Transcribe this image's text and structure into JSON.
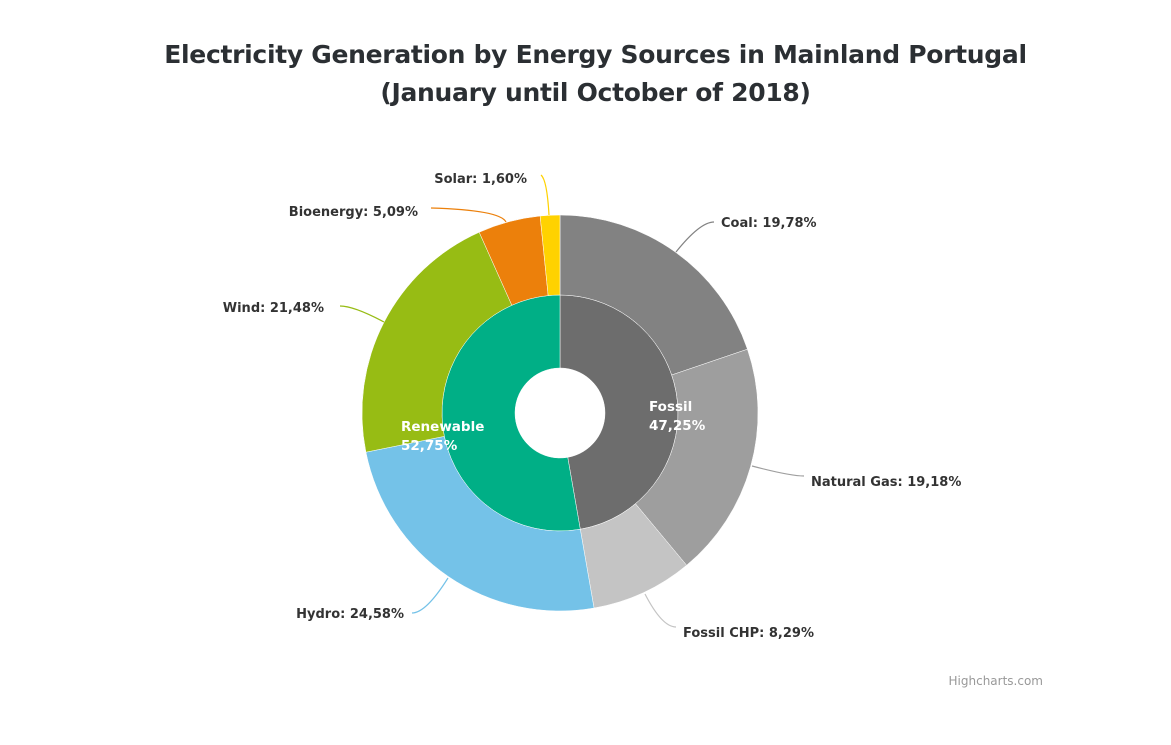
{
  "chart_data": {
    "type": "pie",
    "subtype": "donut-two-level",
    "title": "Electricity Generation by Energy Sources in Mainland Portugal",
    "subtitle": "(January until October of 2018)",
    "inner_ring": [
      {
        "name": "Fossil",
        "value": 47.25,
        "label": "Fossil",
        "value_label": "47,25%",
        "color": "#6d6d6d"
      },
      {
        "name": "Renewable",
        "value": 52.75,
        "label": "Renewable",
        "value_label": "52,75%",
        "color": "#00af86"
      }
    ],
    "outer_ring": [
      {
        "name": "Coal",
        "value": 19.78,
        "label": "Coal: 19,78%",
        "group": "Fossil",
        "color": "#828282"
      },
      {
        "name": "Natural Gas",
        "value": 19.18,
        "label": "Natural Gas: 19,18%",
        "group": "Fossil",
        "color": "#9e9e9e"
      },
      {
        "name": "Fossil CHP",
        "value": 8.29,
        "label": "Fossil CHP: 8,29%",
        "group": "Fossil",
        "color": "#c4c4c4"
      },
      {
        "name": "Hydro",
        "value": 24.58,
        "label": "Hydro: 24,58%",
        "group": "Renewable",
        "color": "#74c2e8"
      },
      {
        "name": "Wind",
        "value": 21.48,
        "label": "Wind: 21,48%",
        "group": "Renewable",
        "color": "#97bc14"
      },
      {
        "name": "Bioenergy",
        "value": 5.09,
        "label": "Bioenergy: 5,09%",
        "group": "Renewable",
        "color": "#ec800b"
      },
      {
        "name": "Solar",
        "value": 1.6,
        "label": "Solar: 1,60%",
        "group": "Renewable",
        "color": "#ffd200"
      }
    ],
    "credits": "Highcharts.com"
  }
}
